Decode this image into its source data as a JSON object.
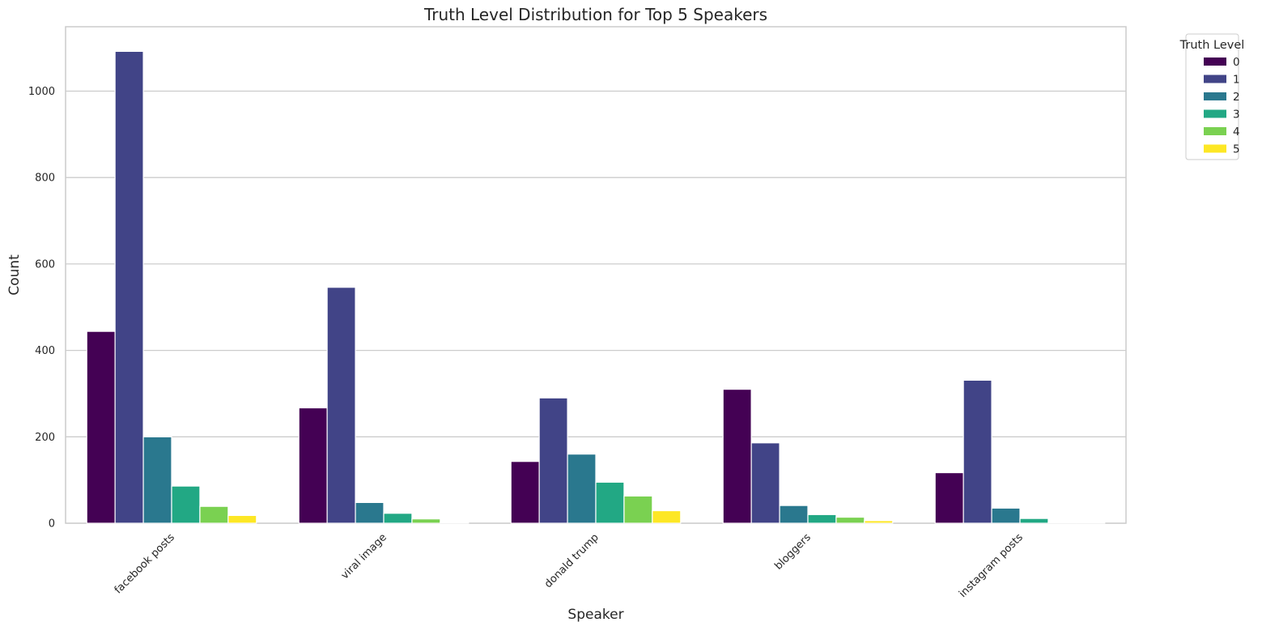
{
  "chart_data": {
    "type": "bar",
    "title": "Truth Level Distribution for Top 5 Speakers",
    "xlabel": "Speaker",
    "ylabel": "Count",
    "categories": [
      "facebook posts",
      "viral image",
      "donald trump",
      "bloggers",
      "instagram posts"
    ],
    "series": [
      {
        "name": "0",
        "color": "#440154",
        "values": [
          444,
          267,
          143,
          310,
          117
        ]
      },
      {
        "name": "1",
        "color": "#414487",
        "values": [
          1092,
          546,
          290,
          186,
          331
        ]
      },
      {
        "name": "2",
        "color": "#2a788e",
        "values": [
          200,
          48,
          160,
          41,
          35
        ]
      },
      {
        "name": "3",
        "color": "#22a884",
        "values": [
          86,
          23,
          95,
          20,
          11
        ]
      },
      {
        "name": "4",
        "color": "#7ad151",
        "values": [
          39,
          10,
          63,
          14,
          2
        ]
      },
      {
        "name": "5",
        "color": "#fde725",
        "values": [
          18,
          2,
          29,
          6,
          1
        ]
      }
    ],
    "yticks": [
      0,
      200,
      400,
      600,
      800,
      1000
    ],
    "ylim": [
      0,
      1149
    ],
    "grid": true,
    "legend": {
      "title": "Truth Level",
      "placement": "outside-top-right"
    }
  }
}
